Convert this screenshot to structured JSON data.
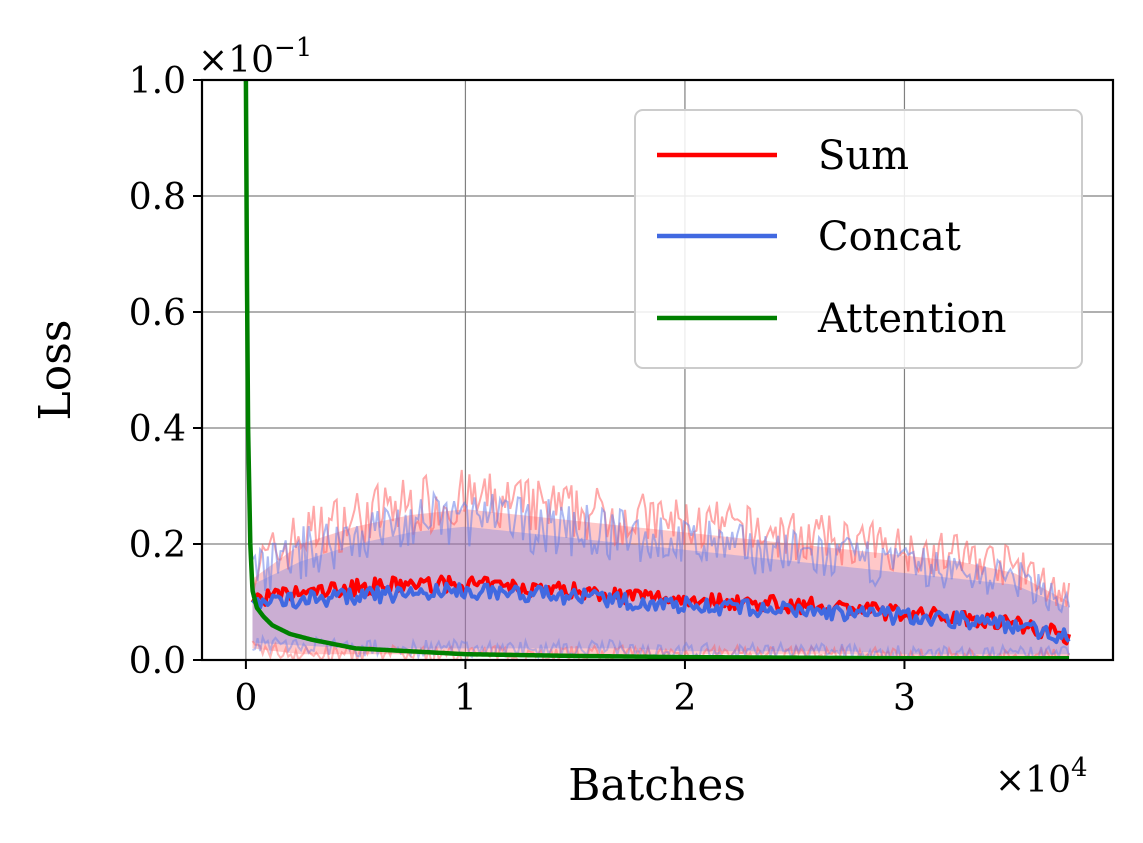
{
  "chart_data": {
    "type": "line",
    "title": "",
    "xlabel": "Batches",
    "ylabel": "Loss",
    "x_multiplier": {
      "prefix": "×10",
      "exponent": "4"
    },
    "y_multiplier": {
      "prefix": "×10",
      "exponent": "−1"
    },
    "xlim": [
      -0.2,
      3.95
    ],
    "ylim": [
      0.0,
      1.0
    ],
    "xticks": [
      0,
      1,
      2,
      3
    ],
    "xtick_labels": [
      "0",
      "1",
      "2",
      "3"
    ],
    "yticks": [
      0.0,
      0.2,
      0.4,
      0.6,
      0.8,
      1.0
    ],
    "ytick_labels": [
      "0.0",
      "0.2",
      "0.4",
      "0.6",
      "0.8",
      "1.0"
    ],
    "grid": true,
    "legend_position": "top-right",
    "series": [
      {
        "name": "Sum",
        "color": "#ff0000",
        "band_color": "#ff6060",
        "x": [
          0.03,
          0.25,
          0.5,
          0.75,
          1.0,
          1.25,
          1.5,
          1.75,
          2.0,
          2.25,
          2.5,
          2.75,
          3.0,
          3.25,
          3.5,
          3.75
        ],
        "values": [
          0.105,
          0.115,
          0.125,
          0.13,
          0.13,
          0.125,
          0.12,
          0.11,
          0.105,
          0.1,
          0.095,
          0.09,
          0.08,
          0.075,
          0.065,
          0.04
        ],
        "upper": [
          0.14,
          0.2,
          0.23,
          0.25,
          0.26,
          0.25,
          0.24,
          0.23,
          0.22,
          0.21,
          0.2,
          0.19,
          0.18,
          0.17,
          0.15,
          0.1
        ],
        "lower": [
          0.02,
          0.01,
          0.01,
          0.01,
          0.01,
          0.01,
          0.01,
          0.01,
          0.01,
          0.01,
          0.01,
          0.01,
          0.005,
          0.005,
          0.005,
          0.005
        ]
      },
      {
        "name": "Concat",
        "color": "#4169e1",
        "band_color": "#6a7fe8",
        "x": [
          0.03,
          0.25,
          0.5,
          0.75,
          1.0,
          1.25,
          1.5,
          1.75,
          2.0,
          2.25,
          2.5,
          2.75,
          3.0,
          3.25,
          3.5,
          3.75
        ],
        "values": [
          0.1,
          0.105,
          0.11,
          0.115,
          0.12,
          0.115,
          0.11,
          0.1,
          0.095,
          0.09,
          0.085,
          0.08,
          0.075,
          0.07,
          0.06,
          0.04
        ],
        "upper": [
          0.13,
          0.17,
          0.2,
          0.22,
          0.23,
          0.22,
          0.21,
          0.2,
          0.19,
          0.18,
          0.17,
          0.16,
          0.15,
          0.14,
          0.13,
          0.09
        ],
        "lower": [
          0.03,
          0.025,
          0.02,
          0.02,
          0.02,
          0.02,
          0.02,
          0.02,
          0.015,
          0.015,
          0.015,
          0.015,
          0.01,
          0.01,
          0.01,
          0.01
        ]
      },
      {
        "name": "Attention",
        "color": "#008000",
        "x": [
          0.0,
          0.005,
          0.01,
          0.02,
          0.03,
          0.05,
          0.08,
          0.12,
          0.2,
          0.3,
          0.5,
          0.75,
          1.0,
          1.5,
          2.0,
          2.5,
          3.0,
          3.75
        ],
        "values": [
          1.0,
          0.65,
          0.4,
          0.2,
          0.12,
          0.09,
          0.075,
          0.06,
          0.045,
          0.035,
          0.02,
          0.015,
          0.01,
          0.007,
          0.005,
          0.004,
          0.003,
          0.003
        ]
      }
    ]
  }
}
